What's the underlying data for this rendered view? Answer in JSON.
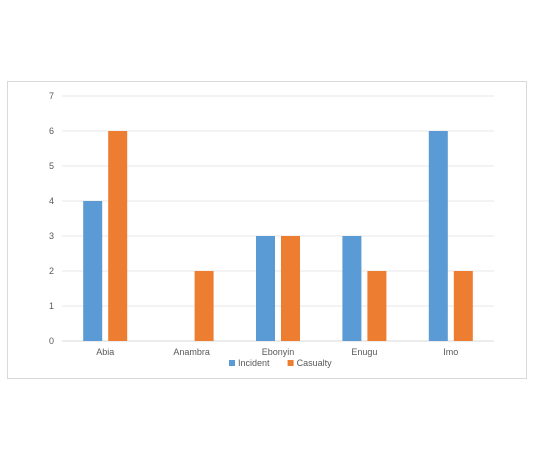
{
  "chart_data": {
    "type": "bar",
    "categories": [
      "Abia",
      "Anambra",
      "Ebonyin",
      "Enugu",
      "Imo"
    ],
    "series": [
      {
        "name": "Incident",
        "values": [
          4,
          0,
          3,
          3,
          6
        ],
        "color": "#5b9bd5"
      },
      {
        "name": "Casualty",
        "values": [
          6,
          2,
          3,
          2,
          2
        ],
        "color": "#ed7d31"
      }
    ],
    "ylim": [
      0,
      7
    ],
    "yticks": [
      "0",
      "1",
      "2",
      "3",
      "4",
      "5",
      "6",
      "7"
    ],
    "grid": true,
    "legend": "bottom"
  }
}
